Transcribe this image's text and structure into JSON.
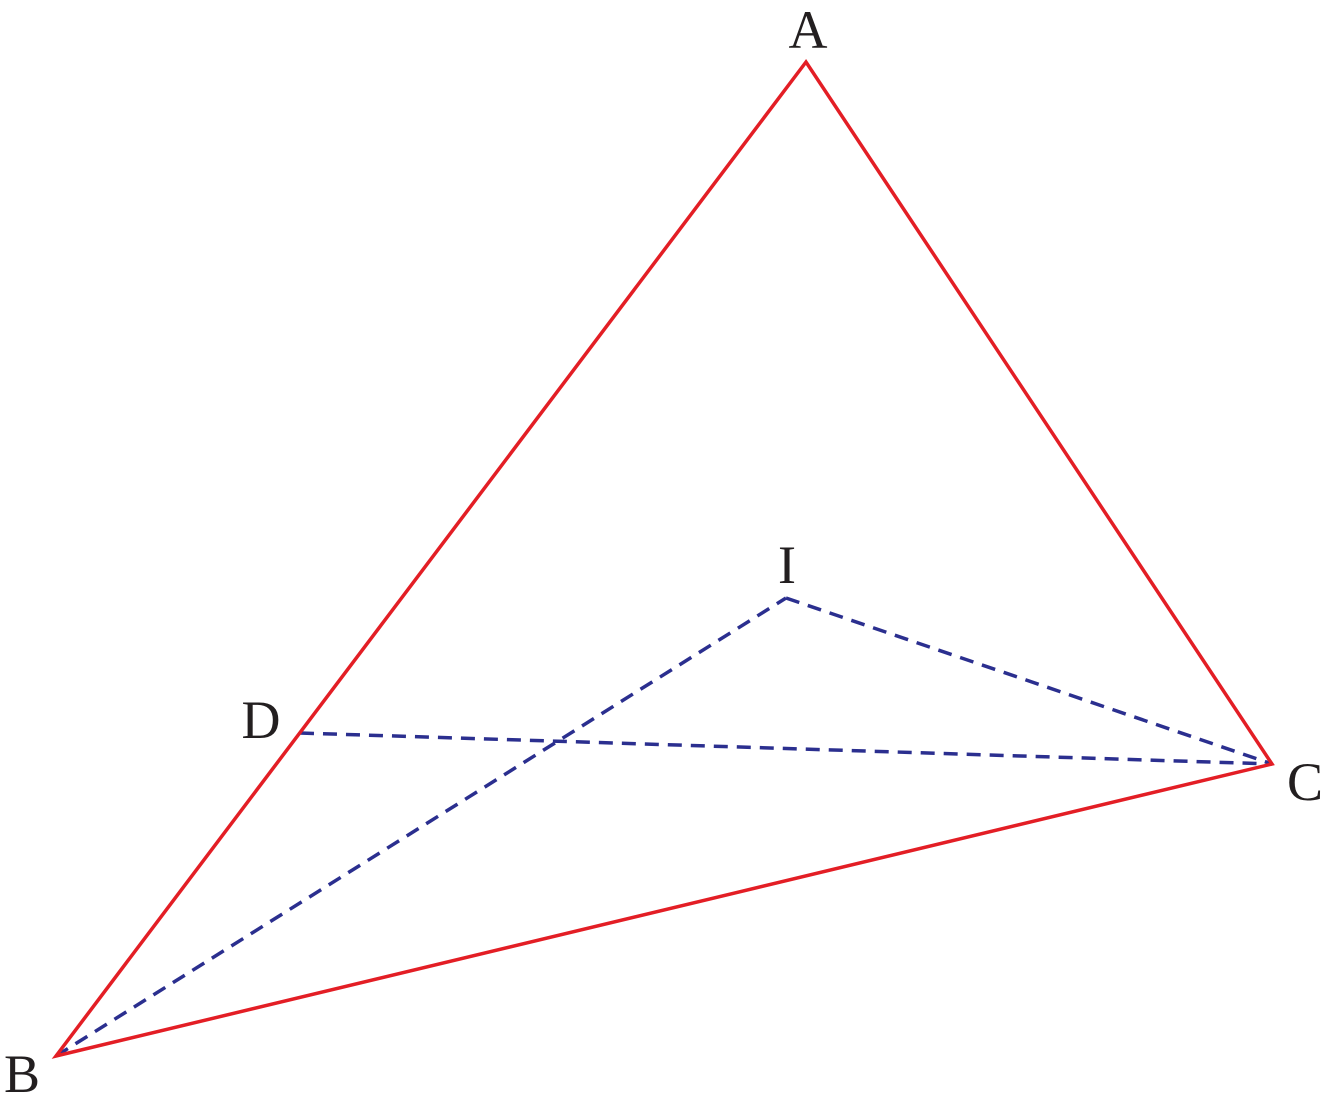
{
  "points": [
    {
      "label": "A"
    },
    {
      "label": "B"
    },
    {
      "label": "C"
    },
    {
      "label": "D"
    },
    {
      "label": "I"
    }
  ]
}
